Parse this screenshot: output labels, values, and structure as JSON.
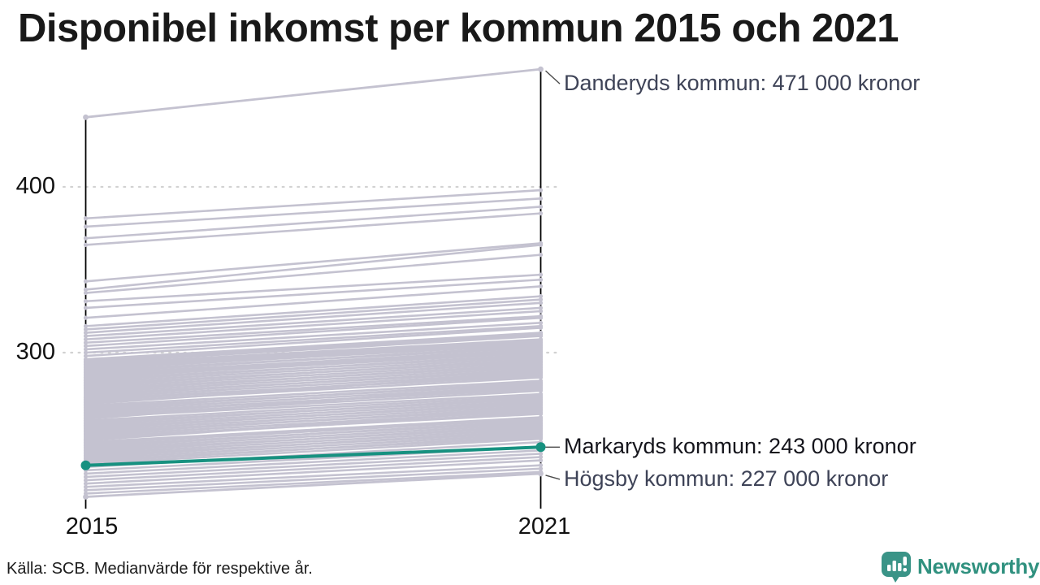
{
  "title": "Disponibel inkomst per kommun 2015 och 2021",
  "footer": {
    "source": "Källa: SCB. Medianvärde för respektive år."
  },
  "logo": {
    "name": "Newsworthy",
    "color": "#30917f"
  },
  "chart_data": {
    "type": "line",
    "subtype": "slope-chart",
    "title": "Disponibel inkomst per kommun 2015 och 2021",
    "x": [
      2015,
      2021
    ],
    "x_labels": [
      "2015",
      "2021"
    ],
    "y_ticks": [
      400,
      300
    ],
    "y_tick_labels": [
      "400",
      "300"
    ],
    "ylim": [
      205,
      480
    ],
    "grid": "dotted horizontal lines at y ticks",
    "legend": "none",
    "unit_hint": "tusental kronor (labels show values in '000 kronor')",
    "line_color": "#c4c2d0",
    "highlight_color": "#179180",
    "series": [
      {
        "name": "Danderyds kommun",
        "values": [
          442,
          471
        ],
        "role": "annotated-top",
        "color": "#c4c2d0"
      },
      {
        "name": "Högsby kommun",
        "values": [
          213,
          227
        ],
        "role": "annotated-bottom",
        "color": "#c4c2d0"
      },
      {
        "name": "Markaryds kommun",
        "values": [
          232,
          243
        ],
        "role": "highlighted",
        "color": "#179180"
      }
    ],
    "annotations": [
      {
        "label": "Danderyds kommun: 471 000 kronor",
        "value": 471,
        "label_dy": 18,
        "color": "#3e4357",
        "strong": false
      },
      {
        "label": "Markaryds kommun: 243 000 kronor",
        "value": 243,
        "label_dy": 0,
        "color": "#15151c",
        "strong": true
      },
      {
        "label": "Högsby kommun: 227 000 kronor",
        "value": 227,
        "label_dy": 7,
        "color": "#3e4357",
        "strong": false
      }
    ],
    "background_series": [
      [
        381,
        398
      ],
      [
        376,
        393
      ],
      [
        369,
        388
      ],
      [
        365,
        384
      ],
      [
        343,
        366
      ],
      [
        338,
        365
      ],
      [
        336,
        359
      ],
      [
        331,
        347
      ],
      [
        327,
        344
      ],
      [
        321,
        340
      ],
      [
        316,
        334
      ],
      [
        314,
        332
      ],
      [
        312,
        330
      ],
      [
        310,
        327
      ],
      [
        308,
        325
      ],
      [
        306,
        322
      ],
      [
        304,
        321
      ],
      [
        302,
        318
      ],
      [
        300,
        316
      ],
      [
        298,
        315
      ],
      [
        296,
        312
      ],
      [
        295,
        311
      ],
      [
        294,
        310
      ],
      [
        293,
        308
      ],
      [
        292,
        307
      ],
      [
        291,
        306
      ],
      [
        290,
        305
      ],
      [
        289,
        303
      ],
      [
        288,
        304
      ],
      [
        287,
        302
      ],
      [
        286,
        301
      ],
      [
        285,
        300
      ],
      [
        284,
        298
      ],
      [
        283,
        299
      ],
      [
        282,
        297
      ],
      [
        281,
        295
      ],
      [
        280,
        296
      ],
      [
        279,
        294
      ],
      [
        278,
        292
      ],
      [
        277,
        293
      ],
      [
        276,
        291
      ],
      [
        275,
        289
      ],
      [
        274,
        290
      ],
      [
        273,
        288
      ],
      [
        272,
        286
      ],
      [
        271,
        287
      ],
      [
        270,
        285
      ],
      [
        269,
        288
      ],
      [
        268,
        283
      ],
      [
        267,
        281
      ],
      [
        266,
        282
      ],
      [
        265,
        280
      ],
      [
        264,
        278
      ],
      [
        263,
        279
      ],
      [
        262,
        277
      ],
      [
        261,
        275
      ],
      [
        260,
        281
      ],
      [
        259,
        274
      ],
      [
        258,
        272
      ],
      [
        257,
        273
      ],
      [
        256,
        271
      ],
      [
        255,
        269
      ],
      [
        254,
        270
      ],
      [
        253,
        268
      ],
      [
        252,
        266
      ],
      [
        251,
        267
      ],
      [
        250,
        265
      ],
      [
        249,
        263
      ],
      [
        248,
        264
      ],
      [
        247,
        266
      ],
      [
        246,
        261
      ],
      [
        245,
        260
      ],
      [
        244,
        258
      ],
      [
        243,
        259
      ],
      [
        242,
        257
      ],
      [
        241,
        255
      ],
      [
        240,
        256
      ],
      [
        239,
        254
      ],
      [
        238,
        252
      ],
      [
        237,
        253
      ],
      [
        236,
        251
      ],
      [
        235,
        249
      ],
      [
        234,
        250
      ],
      [
        233,
        248
      ],
      [
        231,
        246
      ],
      [
        229,
        243
      ],
      [
        227,
        241
      ],
      [
        225,
        239
      ],
      [
        223,
        237
      ],
      [
        221,
        235
      ],
      [
        219,
        232
      ],
      [
        217,
        230
      ],
      [
        215,
        228
      ]
    ]
  }
}
